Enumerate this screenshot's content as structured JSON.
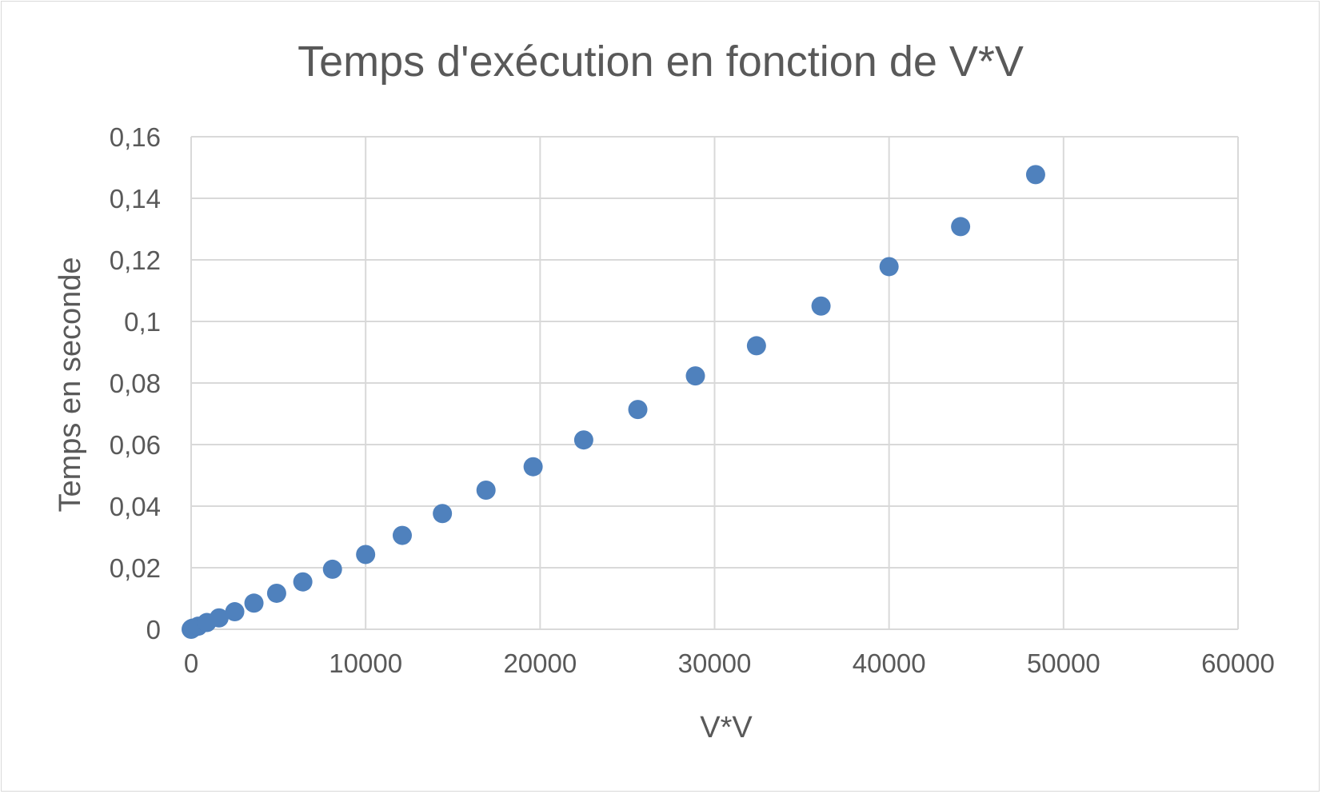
{
  "chart_data": {
    "type": "scatter",
    "title": "Temps d'exécution en fonction de V*V",
    "xlabel": "V*V",
    "ylabel": "Temps en seconde",
    "xlim": [
      0,
      60000
    ],
    "ylim": [
      0,
      0.16
    ],
    "x_ticks": [
      "0",
      "10000",
      "20000",
      "30000",
      "40000",
      "50000",
      "60000"
    ],
    "y_ticks": [
      "0",
      "0,02",
      "0,04",
      "0,06",
      "0,08",
      "0,1",
      "0,12",
      "0,14",
      "0,16"
    ],
    "grid": true,
    "legend": "none",
    "marker_color": "#4f81bd",
    "series": [
      {
        "x": [
          0,
          25,
          100,
          400,
          900,
          1600,
          2500,
          3600,
          4900,
          6400,
          8100,
          10000,
          12100,
          14400,
          16900,
          19600,
          22500,
          25600,
          28900,
          32400,
          36100,
          40000,
          44100,
          48400
        ],
        "y": [
          0,
          0.0002,
          0.0004,
          0.001,
          0.0022,
          0.0037,
          0.0057,
          0.0085,
          0.0117,
          0.0154,
          0.0195,
          0.0243,
          0.0305,
          0.0376,
          0.0452,
          0.0528,
          0.0615,
          0.0714,
          0.0823,
          0.0921,
          0.105,
          0.1178,
          0.1308,
          0.1477
        ]
      }
    ]
  }
}
